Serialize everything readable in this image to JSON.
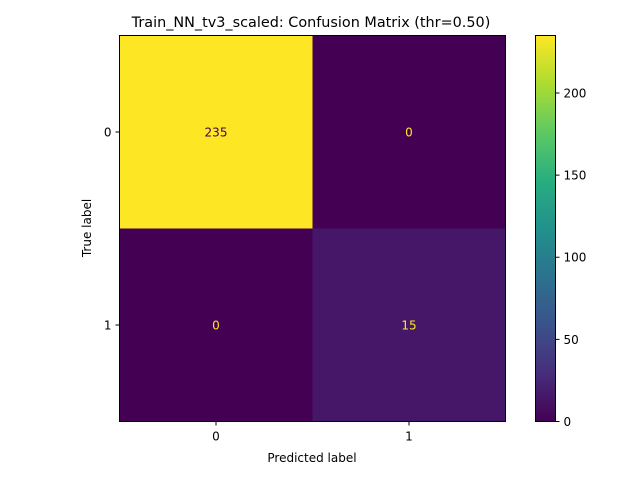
{
  "chart_data": {
    "type": "heatmap",
    "title": "Train_NN_tv3_scaled: Confusion Matrix (thr=0.50)",
    "xlabel": "Predicted label",
    "ylabel": "True label",
    "x_categories": [
      "0",
      "1"
    ],
    "y_categories": [
      "0",
      "1"
    ],
    "values": [
      [
        235,
        0
      ],
      [
        0,
        15
      ]
    ],
    "value_labels": [
      [
        "235",
        "0"
      ],
      [
        "0",
        "15"
      ]
    ],
    "colormap": "viridis",
    "colorbar": {
      "range": [
        0,
        235
      ],
      "ticks": [
        0,
        50,
        100,
        150,
        200
      ],
      "tick_labels": [
        "0",
        "50",
        "100",
        "150",
        "200"
      ]
    },
    "grid": false,
    "label_colors": {
      "on_bright": "#440154",
      "on_dark": "#fde725"
    }
  }
}
